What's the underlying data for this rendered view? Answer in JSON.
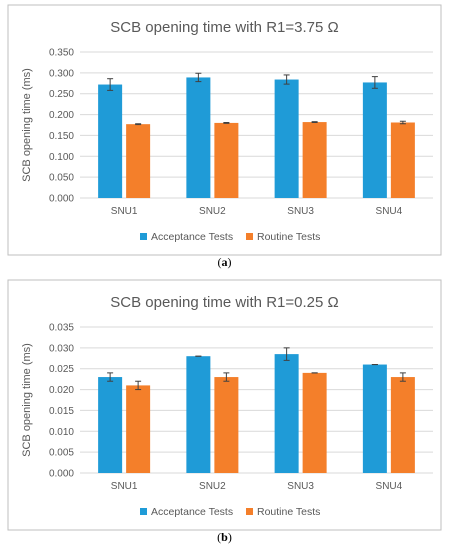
{
  "colors": {
    "acceptance": "#1f9bd7",
    "routine": "#f47f2a",
    "grid": "#d9d9d9",
    "frame": "#bfbfbf",
    "error_bar": "#404040"
  },
  "chart_data": [
    {
      "type": "bar",
      "caption": "a",
      "title": "SCB opening time with R1=3.75 Ω",
      "xlabel": "",
      "ylabel": "SCB opening time (ms)",
      "categories": [
        "SNU1",
        "SNU2",
        "SNU3",
        "SNU4"
      ],
      "ylim": [
        0,
        0.35
      ],
      "yticks": [
        "0.000",
        "0.050",
        "0.100",
        "0.150",
        "0.200",
        "0.250",
        "0.300",
        "0.350"
      ],
      "grid": true,
      "legend_position": "bottom",
      "series": [
        {
          "name": "Acceptance Tests",
          "color": "#1f9bd7",
          "values": [
            0.272,
            0.289,
            0.284,
            0.277
          ],
          "errors": [
            0.014,
            0.01,
            0.011,
            0.014
          ]
        },
        {
          "name": "Routine Tests",
          "color": "#f47f2a",
          "values": [
            0.177,
            0.18,
            0.182,
            0.181
          ],
          "errors": [
            0.001,
            0.001,
            0.001,
            0.003
          ]
        }
      ]
    },
    {
      "type": "bar",
      "caption": "b",
      "title": "SCB opening time with R1=0.25 Ω",
      "xlabel": "",
      "ylabel": "SCB opening time (ms)",
      "categories": [
        "SNU1",
        "SNU2",
        "SNU3",
        "SNU4"
      ],
      "ylim": [
        0,
        0.035
      ],
      "yticks": [
        "0.000",
        "0.005",
        "0.010",
        "0.015",
        "0.020",
        "0.025",
        "0.030",
        "0.035"
      ],
      "grid": true,
      "legend_position": "bottom",
      "series": [
        {
          "name": "Acceptance Tests",
          "color": "#1f9bd7",
          "values": [
            0.023,
            0.028,
            0.0285,
            0.026
          ],
          "errors": [
            0.001,
            0.0,
            0.0015,
            0.0
          ]
        },
        {
          "name": "Routine Tests",
          "color": "#f47f2a",
          "values": [
            0.021,
            0.023,
            0.024,
            0.023
          ],
          "errors": [
            0.001,
            0.001,
            0.0,
            0.001
          ]
        }
      ]
    }
  ]
}
